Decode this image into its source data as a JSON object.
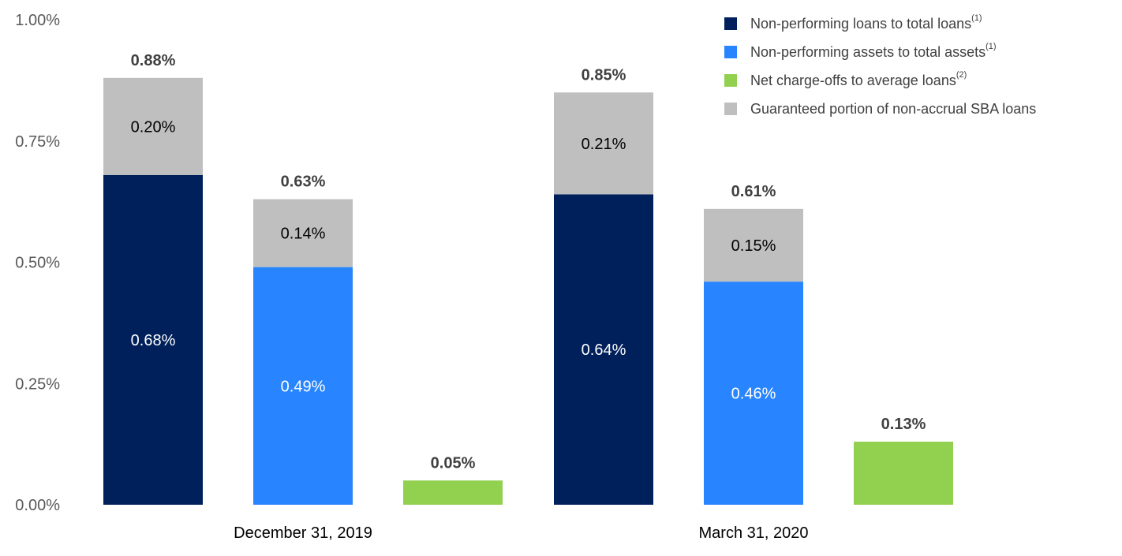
{
  "chart_data": {
    "type": "bar",
    "stacked": true,
    "ylim": [
      0,
      1.0
    ],
    "yticks": [
      "0.00%",
      "0.25%",
      "0.50%",
      "0.75%",
      "1.00%"
    ],
    "ytick_values": [
      0,
      0.25,
      0.5,
      0.75,
      1.0
    ],
    "categories": [
      "December 31, 2019",
      "March 31, 2020"
    ],
    "series": [
      {
        "name": "Non-performing loans to total loans",
        "footnote": "(1)",
        "color": "#00205b"
      },
      {
        "name": "Non-performing assets to total assets",
        "footnote": "(1)",
        "color": "#2985ff"
      },
      {
        "name": "Net charge-offs to average loans",
        "footnote": "(2)",
        "color": "#92d050"
      },
      {
        "name": "Guaranteed portion of non-accrual SBA loans",
        "footnote": "",
        "color": "#bfbfbf"
      }
    ],
    "groups": [
      {
        "category": "December 31, 2019",
        "bars": [
          {
            "id": "dec-npl",
            "series": 0,
            "base": 0.68,
            "base_label": "0.68%",
            "top": 0.2,
            "top_label": "0.20%",
            "total": 0.88,
            "total_label": "0.88%"
          },
          {
            "id": "dec-npa",
            "series": 1,
            "base": 0.49,
            "base_label": "0.49%",
            "top": 0.14,
            "top_label": "0.14%",
            "total": 0.63,
            "total_label": "0.63%"
          },
          {
            "id": "dec-nco",
            "series": 2,
            "base": 0.05,
            "base_label": "",
            "top": 0,
            "top_label": "",
            "total": 0.05,
            "total_label": "0.05%"
          }
        ]
      },
      {
        "category": "March 31, 2020",
        "bars": [
          {
            "id": "mar-npl",
            "series": 0,
            "base": 0.64,
            "base_label": "0.64%",
            "top": 0.21,
            "top_label": "0.21%",
            "total": 0.85,
            "total_label": "0.85%"
          },
          {
            "id": "mar-npa",
            "series": 1,
            "base": 0.46,
            "base_label": "0.46%",
            "top": 0.15,
            "top_label": "0.15%",
            "total": 0.61,
            "total_label": "0.61%"
          },
          {
            "id": "mar-nco",
            "series": 2,
            "base": 0.13,
            "base_label": "",
            "top": 0,
            "top_label": "",
            "total": 0.13,
            "total_label": "0.13%"
          }
        ]
      }
    ]
  }
}
